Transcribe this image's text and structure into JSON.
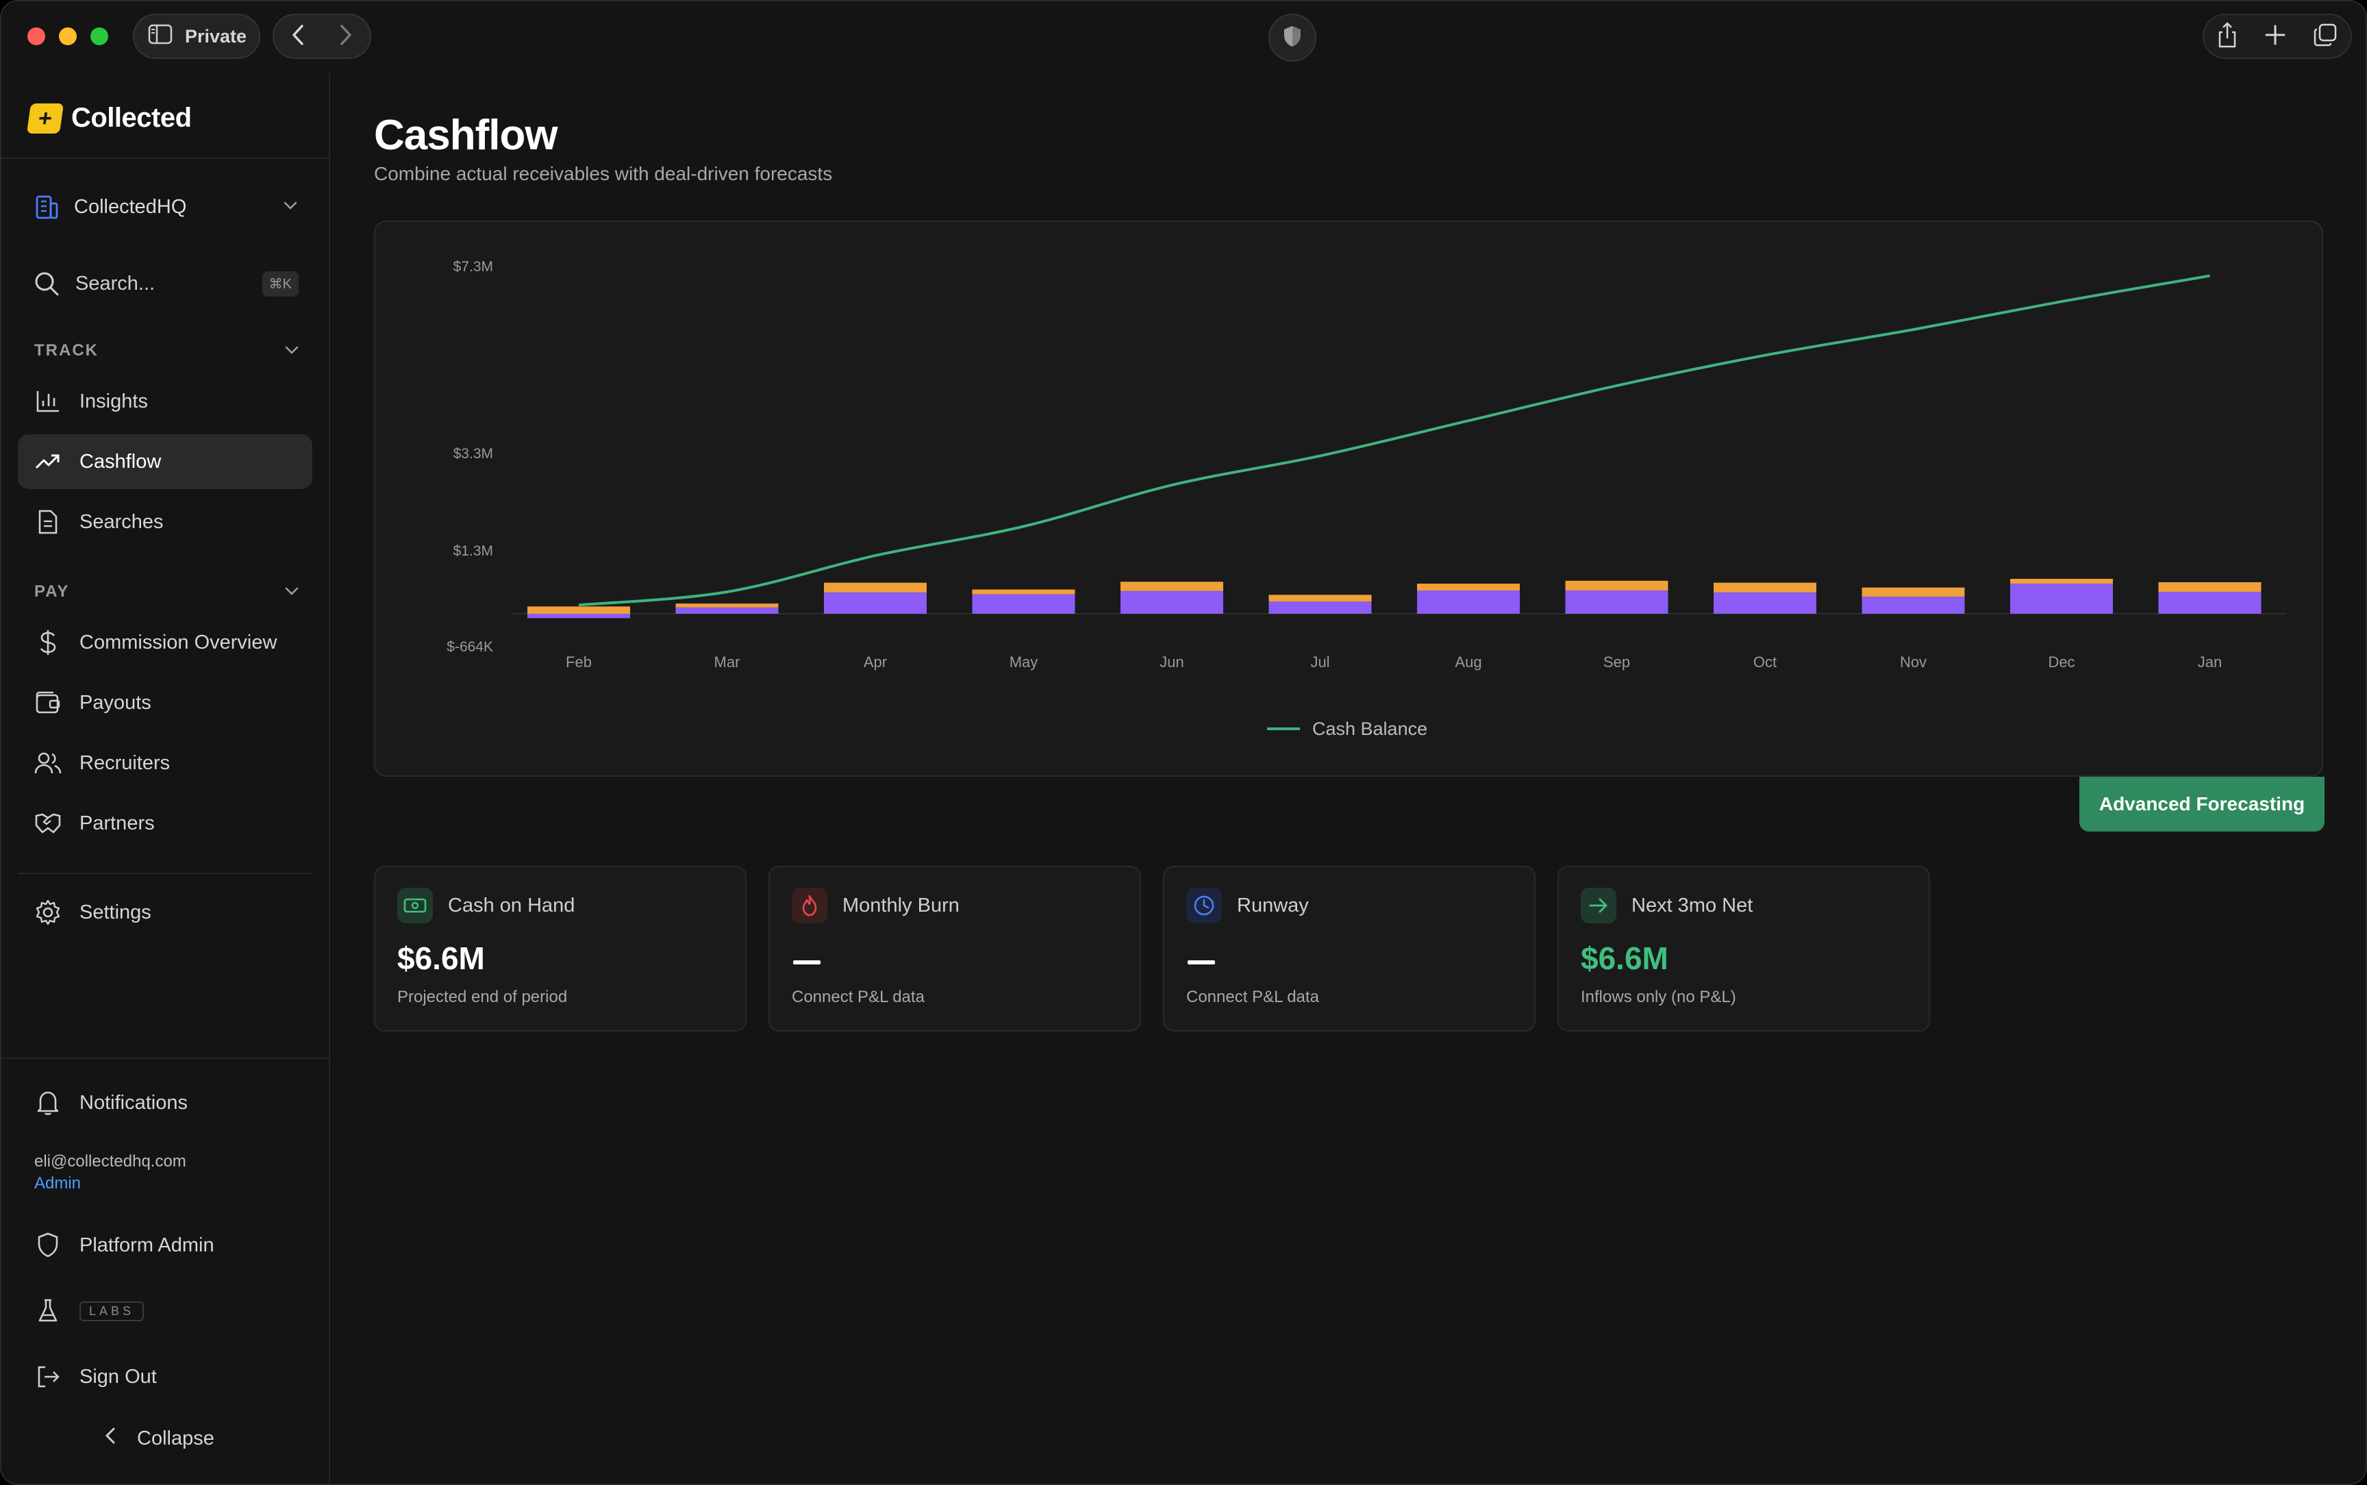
{
  "browser": {
    "private_label": "Private"
  },
  "sidebar": {
    "brand": "Collected",
    "org": "CollectedHQ",
    "search_placeholder": "Search...",
    "search_shortcut": "⌘K",
    "track_label": "TRACK",
    "track_items": [
      {
        "label": "Insights",
        "icon": "bar-chart-icon"
      },
      {
        "label": "Cashflow",
        "icon": "trending-up-icon",
        "active": true
      },
      {
        "label": "Searches",
        "icon": "document-icon"
      }
    ],
    "pay_label": "PAY",
    "pay_items": [
      {
        "label": "Commission Overview",
        "icon": "dollar-icon"
      },
      {
        "label": "Payouts",
        "icon": "wallet-icon"
      },
      {
        "label": "Recruiters",
        "icon": "users-icon"
      },
      {
        "label": "Partners",
        "icon": "handshake-icon"
      }
    ],
    "settings": "Settings",
    "notifications": "Notifications",
    "user_email": "eli@collectedhq.com",
    "user_role": "Admin",
    "platform_admin": "Platform Admin",
    "labs": "LABS",
    "sign_out": "Sign Out",
    "collapse": "Collapse"
  },
  "main": {
    "title": "Cashflow",
    "subtitle": "Combine actual receivables with deal-driven forecasts",
    "advanced_button": "Advanced Forecasting",
    "stats": [
      {
        "label": "Cash on Hand",
        "value": "$6.6M",
        "sub": "Projected end of period",
        "icon": "cash-icon",
        "color": "#3fbf7f"
      },
      {
        "label": "Monthly Burn",
        "value": "—",
        "sub": "Connect P&L data",
        "icon": "flame-icon",
        "color": "#e5484d"
      },
      {
        "label": "Runway",
        "value": "—",
        "sub": "Connect P&L data",
        "icon": "clock-icon",
        "color": "#4d7dff"
      },
      {
        "label": "Next 3mo Net",
        "value": "$6.6M",
        "sub": "Inflows only (no P&L)",
        "icon": "arrow-right-icon",
        "color": "#3fbf7f"
      }
    ]
  },
  "chart_data": {
    "type": "bar",
    "categories": [
      "Feb",
      "Mar",
      "Apr",
      "May",
      "Jun",
      "Jul",
      "Aug",
      "Sep",
      "Oct",
      "Nov",
      "Dec",
      "Jan"
    ],
    "y_tick_labels": [
      "$7.3M",
      "$3.3M",
      "$1.3M",
      "$-664K"
    ],
    "y_ticks": [
      7300000,
      3300000,
      1300000,
      -664000
    ],
    "series": [
      {
        "kind": "bar",
        "color": "#8b5cf6",
        "values": [
          -90000,
          130000,
          440000,
          400000,
          470000,
          250000,
          480000,
          480000,
          440000,
          350000,
          620000,
          450000
        ]
      },
      {
        "kind": "bar",
        "color": "#f0a038",
        "values": [
          150000,
          80000,
          200000,
          100000,
          190000,
          140000,
          140000,
          200000,
          200000,
          190000,
          100000,
          200000
        ]
      },
      {
        "kind": "line",
        "name": "Cash Balance",
        "color": "#3fb37f",
        "values": [
          180000,
          450000,
          1200000,
          1800000,
          2650000,
          3250000,
          4000000,
          4750000,
          5400000,
          5950000,
          6550000,
          7100000
        ]
      }
    ],
    "legend_position": "bottom-center",
    "grid": false
  }
}
